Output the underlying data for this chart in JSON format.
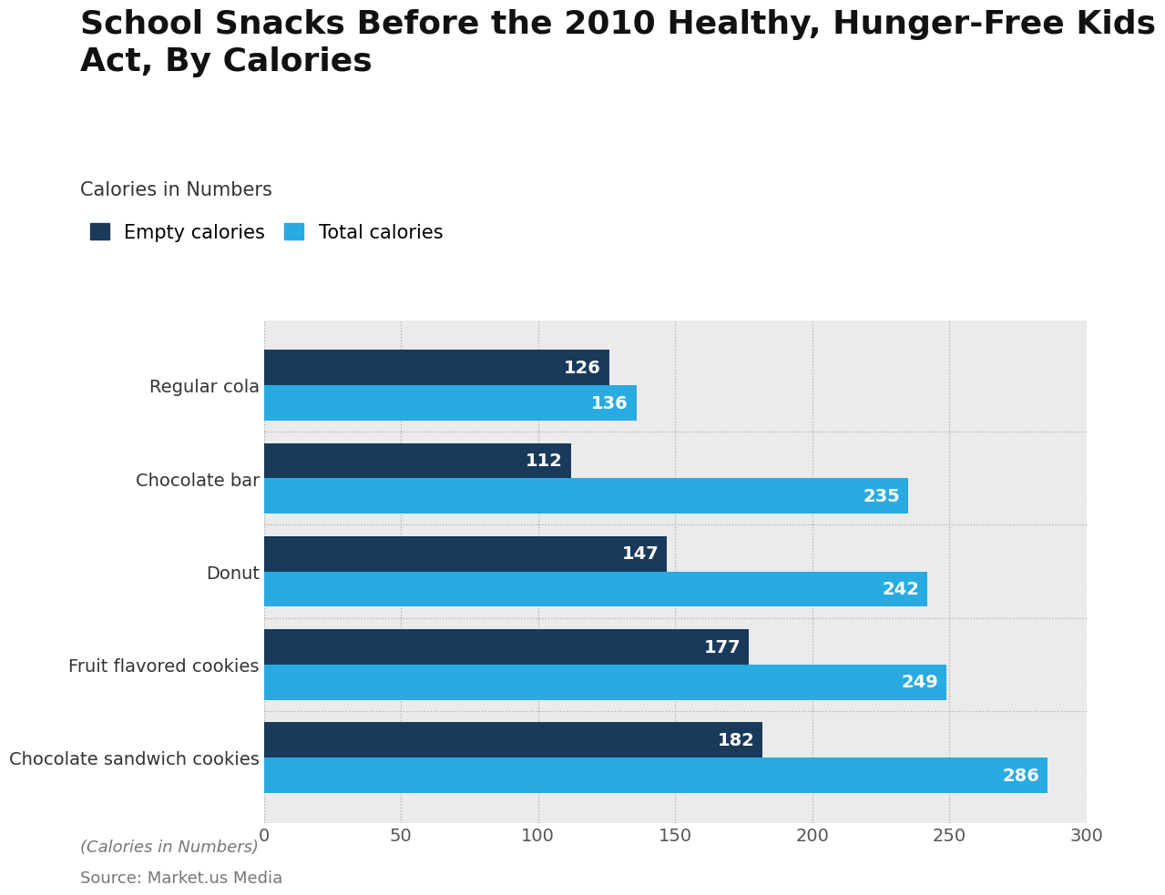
{
  "title": "School Snacks Before the 2010 Healthy, Hunger-Free Kids\nAct, By Calories",
  "subtitle": "Calories in Numbers",
  "categories": [
    "Chocolate sandwich cookies",
    "Fruit flavored cookies",
    "Donut",
    "Chocolate bar",
    "Regular cola"
  ],
  "empty_calories": [
    182,
    177,
    147,
    112,
    126
  ],
  "total_calories": [
    286,
    249,
    242,
    235,
    136
  ],
  "empty_color": "#1a3a5c",
  "total_color": "#29abe2",
  "label_color": "#ffffff",
  "xlim": [
    0,
    300
  ],
  "xticks": [
    0,
    50,
    100,
    150,
    200,
    250,
    300
  ],
  "legend_empty": "Empty calories",
  "legend_total": "Total calories",
  "footer_italic": "(Calories in Numbers)",
  "footer_source": "Source: Market.us Media",
  "plot_bg_color": "#ebebeb",
  "bar_height": 0.38,
  "title_fontsize": 26,
  "subtitle_fontsize": 15,
  "label_fontsize": 14,
  "tick_fontsize": 14,
  "legend_fontsize": 15,
  "footer_fontsize": 13
}
